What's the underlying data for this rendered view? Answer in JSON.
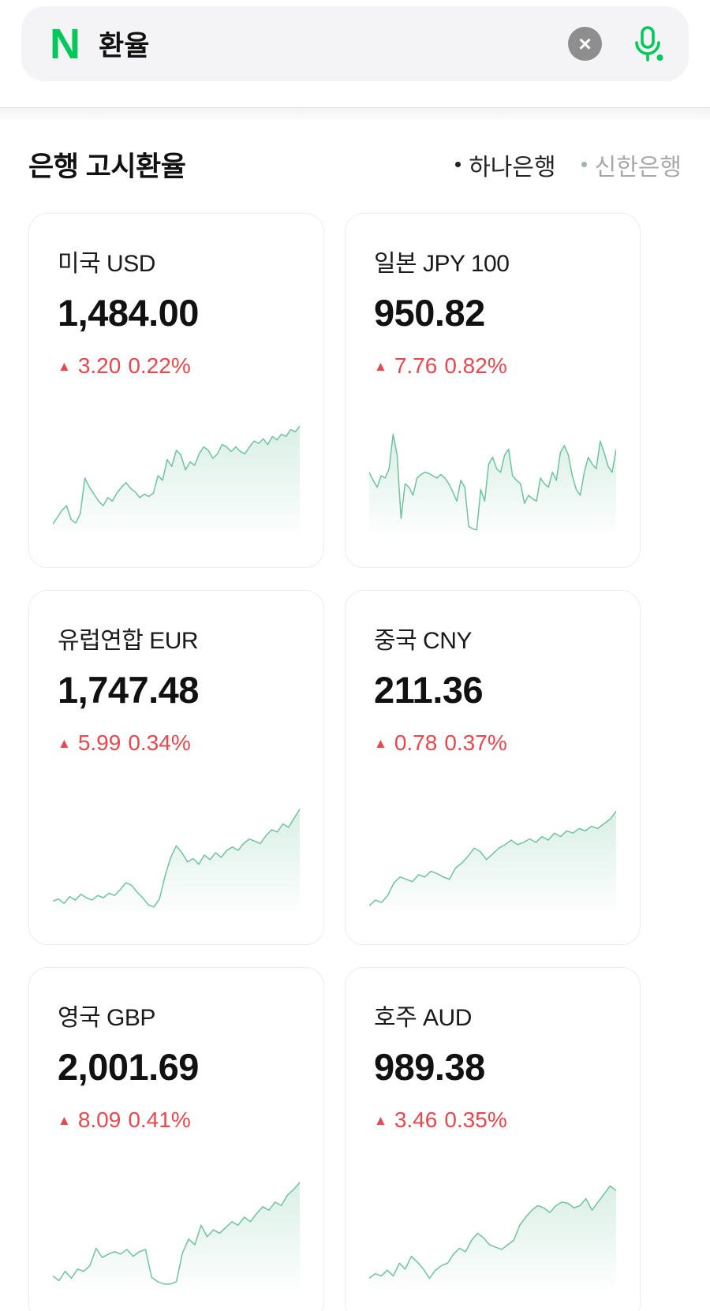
{
  "colors": {
    "naver_green": "#03C75A",
    "up_red": "#E5484D",
    "spark_line": "#6FC2A0",
    "spark_fill": "#6FC2A0",
    "card_border": "#ECECEC",
    "search_bg": "#F4F4F6",
    "clear_btn_bg": "#8E8E8E",
    "tab_active": "#222222",
    "tab_inactive": "#A8A8A8",
    "tab_inactive_dot": "#9FB5A8"
  },
  "search": {
    "logo_letter": "N",
    "query": "환율",
    "clear_icon": "×"
  },
  "section": {
    "title": "은행 고시환율",
    "tabs": [
      {
        "label": "하나은행",
        "active": true
      },
      {
        "label": "신한은행",
        "active": false
      }
    ]
  },
  "cards": [
    {
      "name": "미국 USD",
      "rate": "1,484.00",
      "arrow": "▲",
      "change": "3.20",
      "percent": "0.22%",
      "direction": "up",
      "sparkline": [
        10,
        16,
        22,
        26,
        14,
        11,
        19,
        50,
        42,
        36,
        30,
        26,
        33,
        30,
        37,
        42,
        46,
        41,
        38,
        33,
        36,
        34,
        37,
        52,
        48,
        66,
        60,
        74,
        70,
        57,
        64,
        61,
        71,
        77,
        74,
        67,
        71,
        79,
        77,
        73,
        77,
        73,
        71,
        77,
        82,
        80,
        84,
        79,
        86,
        83,
        88,
        86,
        92,
        90,
        95
      ]
    },
    {
      "name": "일본 JPY 100",
      "rate": "950.82",
      "arrow": "▲",
      "change": "7.76",
      "percent": "0.82%",
      "direction": "up",
      "sparkline": [
        55,
        48,
        42,
        52,
        50,
        58,
        88,
        70,
        15,
        45,
        42,
        35,
        50,
        53,
        55,
        54,
        52,
        50,
        53,
        50,
        45,
        38,
        30,
        48,
        42,
        8,
        6,
        5,
        40,
        30,
        62,
        68,
        58,
        55,
        70,
        75,
        52,
        48,
        45,
        28,
        35,
        32,
        30,
        50,
        45,
        42,
        55,
        48,
        72,
        78,
        70,
        52,
        40,
        35,
        55,
        68,
        62,
        58,
        82,
        72,
        60,
        55,
        75
      ]
    },
    {
      "name": "유럽연합 EUR",
      "rate": "1,747.48",
      "arrow": "▲",
      "change": "5.99",
      "percent": "0.34%",
      "direction": "up",
      "sparkline": [
        10,
        12,
        8,
        14,
        11,
        16,
        13,
        11,
        15,
        13,
        17,
        15,
        20,
        26,
        24,
        18,
        13,
        7,
        5,
        12,
        32,
        48,
        58,
        52,
        44,
        47,
        42,
        50,
        46,
        52,
        48,
        54,
        57,
        54,
        60,
        64,
        62,
        60,
        67,
        72,
        70,
        77,
        74,
        82,
        90
      ]
    },
    {
      "name": "중국 CNY",
      "rate": "211.36",
      "arrow": "▲",
      "change": "0.78",
      "percent": "0.37%",
      "direction": "up",
      "sparkline": [
        6,
        11,
        9,
        15,
        26,
        31,
        29,
        27,
        33,
        31,
        36,
        34,
        31,
        29,
        39,
        43,
        49,
        56,
        53,
        46,
        51,
        56,
        59,
        63,
        59,
        61,
        64,
        61,
        66,
        63,
        69,
        66,
        71,
        69,
        73,
        71,
        75,
        73,
        77,
        81,
        88
      ]
    },
    {
      "name": "영국 GBP",
      "rate": "2,001.69",
      "arrow": "▲",
      "change": "8.09",
      "percent": "0.41%",
      "direction": "up",
      "sparkline": [
        12,
        8,
        16,
        10,
        18,
        16,
        21,
        36,
        28,
        31,
        33,
        31,
        35,
        29,
        33,
        35,
        11,
        7,
        5,
        5,
        7,
        32,
        44,
        39,
        56,
        46,
        52,
        49,
        54,
        59,
        56,
        63,
        59,
        66,
        72,
        69,
        76,
        73,
        82,
        87,
        93
      ]
    },
    {
      "name": "호주 AUD",
      "rate": "989.38",
      "arrow": "▲",
      "change": "3.46",
      "percent": "0.35%",
      "direction": "up",
      "sparkline": [
        10,
        14,
        12,
        17,
        12,
        23,
        18,
        29,
        24,
        18,
        10,
        17,
        21,
        23,
        31,
        36,
        33,
        43,
        49,
        45,
        39,
        37,
        35,
        39,
        43,
        56,
        63,
        69,
        73,
        71,
        67,
        73,
        76,
        75,
        71,
        73,
        79,
        69,
        76,
        83,
        90,
        86
      ]
    }
  ]
}
